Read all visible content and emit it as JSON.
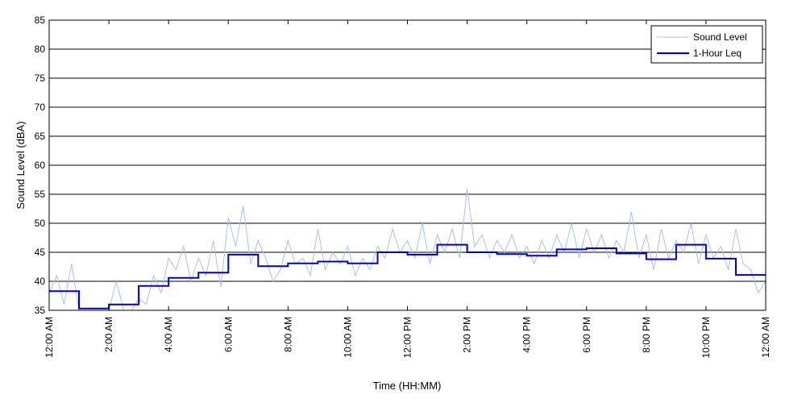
{
  "chart_data": {
    "type": "line",
    "xlabel": "Time (HH:MM)",
    "ylabel": "Sound Level (dBA)",
    "ylim": [
      35,
      85
    ],
    "yticks": [
      35,
      40,
      45,
      50,
      55,
      60,
      65,
      70,
      75,
      80,
      85
    ],
    "xlim_hours": [
      0,
      24
    ],
    "xtick_hours": [
      0,
      2,
      4,
      6,
      8,
      10,
      12,
      14,
      16,
      18,
      20,
      22,
      24
    ],
    "xtick_labels": [
      "12:00 AM",
      "2:00 AM",
      "4:00 AM",
      "6:00 AM",
      "8:00 AM",
      "10:00 AM",
      "12:00 PM",
      "2:00 PM",
      "4:00 PM",
      "6:00 PM",
      "8:00 PM",
      "10:00 PM",
      "12:00 AM"
    ],
    "grid": "horizontal",
    "legend_position": "top-right",
    "series": [
      {
        "name": "Sound Level",
        "color": "#a9c0ee",
        "x_hours": [
          0.0,
          0.25,
          0.5,
          0.75,
          1.0,
          1.25,
          1.5,
          1.75,
          2.0,
          2.25,
          2.5,
          2.75,
          3.0,
          3.25,
          3.5,
          3.75,
          4.0,
          4.25,
          4.5,
          4.75,
          5.0,
          5.25,
          5.5,
          5.75,
          6.0,
          6.25,
          6.5,
          6.75,
          7.0,
          7.25,
          7.5,
          7.75,
          8.0,
          8.25,
          8.5,
          8.75,
          9.0,
          9.25,
          9.5,
          9.75,
          10.0,
          10.25,
          10.5,
          10.75,
          11.0,
          11.25,
          11.5,
          11.75,
          12.0,
          12.25,
          12.5,
          12.75,
          13.0,
          13.25,
          13.5,
          13.75,
          14.0,
          14.25,
          14.5,
          14.75,
          15.0,
          15.25,
          15.5,
          15.75,
          16.0,
          16.25,
          16.5,
          16.75,
          17.0,
          17.25,
          17.5,
          17.75,
          18.0,
          18.25,
          18.5,
          18.75,
          19.0,
          19.25,
          19.5,
          19.75,
          20.0,
          20.25,
          20.5,
          20.75,
          21.0,
          21.25,
          21.5,
          21.75,
          22.0,
          22.25,
          22.5,
          22.75,
          23.0,
          23.25,
          23.5,
          23.75,
          24.0
        ],
        "values": [
          38,
          41,
          36,
          43,
          35,
          35,
          35,
          35,
          35,
          40,
          35,
          35,
          37,
          36,
          41,
          38,
          44,
          42,
          46,
          40,
          44,
          41,
          47,
          39,
          51,
          46,
          53,
          43,
          47,
          44,
          40,
          42,
          47,
          43,
          44,
          41,
          49,
          42,
          45,
          43,
          46,
          41,
          44,
          42,
          46,
          44,
          49,
          45,
          47,
          44,
          50,
          43,
          48,
          45,
          49,
          44,
          56,
          46,
          48,
          44,
          47,
          45,
          48,
          44,
          46,
          43,
          47,
          44,
          48,
          45,
          50,
          44,
          49,
          45,
          48,
          44,
          47,
          45,
          52,
          44,
          48,
          42,
          49,
          44,
          47,
          45,
          50,
          43,
          48,
          44,
          46,
          42,
          49,
          43,
          42,
          38,
          40
        ]
      },
      {
        "name": "1-Hour Leq",
        "color": "#0000cc",
        "hourly_values": [
          38.3,
          35.3,
          36.0,
          39.2,
          40.6,
          41.5,
          44.6,
          42.6,
          43.1,
          43.4,
          43.1,
          45.0,
          44.6,
          46.3,
          45.0,
          44.7,
          44.4,
          45.5,
          45.7,
          44.8,
          43.8,
          46.3,
          43.9,
          41.1
        ]
      }
    ]
  }
}
